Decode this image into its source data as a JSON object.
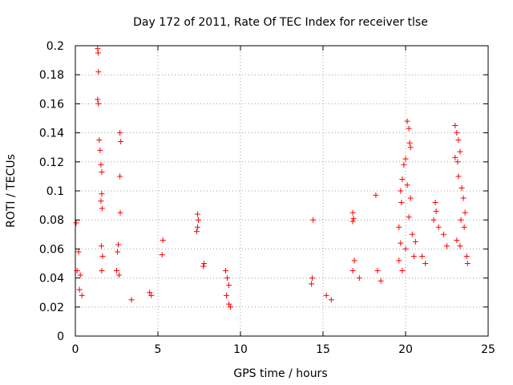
{
  "chart_data": {
    "type": "scatter",
    "title": "Day 172 of 2011, Rate Of TEC Index for receiver tlse",
    "xlabel": "GPS time / hours",
    "ylabel": "ROTI / TECUs",
    "xlim": [
      0,
      25
    ],
    "ylim": [
      0,
      0.2
    ],
    "xticks": [
      "0",
      "5",
      "10",
      "15",
      "20",
      "25"
    ],
    "yticks": [
      "0",
      "0.02",
      "0.04",
      "0.06",
      "0.08",
      "0.1",
      "0.12",
      "0.14",
      "0.16",
      "0.18",
      "0.2"
    ],
    "grid": true,
    "legend": "none",
    "marker": "+",
    "color": "#ff0000",
    "series": [
      {
        "values": [
          [
            0.05,
            0.078
          ],
          [
            0.1,
            0.045
          ],
          [
            0.2,
            0.058
          ],
          [
            0.3,
            0.042
          ],
          [
            0.25,
            0.032
          ],
          [
            0.4,
            0.028
          ],
          [
            1.35,
            0.198
          ],
          [
            1.38,
            0.195
          ],
          [
            1.4,
            0.182
          ],
          [
            1.35,
            0.163
          ],
          [
            1.4,
            0.16
          ],
          [
            1.45,
            0.135
          ],
          [
            1.5,
            0.128
          ],
          [
            1.55,
            0.118
          ],
          [
            1.6,
            0.113
          ],
          [
            1.6,
            0.098
          ],
          [
            1.55,
            0.093
          ],
          [
            1.62,
            0.088
          ],
          [
            1.58,
            0.062
          ],
          [
            1.65,
            0.055
          ],
          [
            1.6,
            0.045
          ],
          [
            2.7,
            0.14
          ],
          [
            2.75,
            0.134
          ],
          [
            2.7,
            0.11
          ],
          [
            2.72,
            0.085
          ],
          [
            2.6,
            0.063
          ],
          [
            2.55,
            0.058
          ],
          [
            2.5,
            0.045
          ],
          [
            2.65,
            0.042
          ],
          [
            5.3,
            0.066
          ],
          [
            5.25,
            0.056
          ],
          [
            7.4,
            0.084
          ],
          [
            7.45,
            0.08
          ],
          [
            7.4,
            0.075
          ],
          [
            7.35,
            0.072
          ],
          [
            7.8,
            0.05
          ],
          [
            7.75,
            0.048
          ],
          [
            4.5,
            0.03
          ],
          [
            3.4,
            0.025
          ],
          [
            4.6,
            0.028
          ],
          [
            9.1,
            0.045
          ],
          [
            9.2,
            0.04
          ],
          [
            9.3,
            0.035
          ],
          [
            9.15,
            0.028
          ],
          [
            9.3,
            0.022
          ],
          [
            9.4,
            0.02
          ],
          [
            14.4,
            0.08
          ],
          [
            14.35,
            0.04
          ],
          [
            14.3,
            0.036
          ],
          [
            15.2,
            0.028
          ],
          [
            15.5,
            0.025
          ],
          [
            16.8,
            0.085
          ],
          [
            16.85,
            0.081
          ],
          [
            16.8,
            0.079
          ],
          [
            16.9,
            0.052
          ],
          [
            16.8,
            0.045
          ],
          [
            17.2,
            0.04
          ],
          [
            18.2,
            0.097
          ],
          [
            18.3,
            0.045
          ],
          [
            18.5,
            0.038
          ],
          [
            19.6,
            0.075
          ],
          [
            19.7,
            0.064
          ],
          [
            19.6,
            0.052
          ],
          [
            19.8,
            0.045
          ],
          [
            20.1,
            0.148
          ],
          [
            20.2,
            0.143
          ],
          [
            20.25,
            0.133
          ],
          [
            20.3,
            0.13
          ],
          [
            20.0,
            0.122
          ],
          [
            19.9,
            0.118
          ],
          [
            19.8,
            0.108
          ],
          [
            20.1,
            0.104
          ],
          [
            20.3,
            0.095
          ],
          [
            19.7,
            0.1
          ],
          [
            19.75,
            0.092
          ],
          [
            20.2,
            0.082
          ],
          [
            20.4,
            0.07
          ],
          [
            20.6,
            0.065
          ],
          [
            20.0,
            0.06
          ],
          [
            20.5,
            0.055
          ],
          [
            21.0,
            0.055
          ],
          [
            21.2,
            0.05
          ],
          [
            21.8,
            0.092
          ],
          [
            21.85,
            0.086
          ],
          [
            21.7,
            0.08
          ],
          [
            22.0,
            0.075
          ],
          [
            22.3,
            0.07
          ],
          [
            22.5,
            0.062
          ],
          [
            23.0,
            0.145
          ],
          [
            23.1,
            0.14
          ],
          [
            23.2,
            0.135
          ],
          [
            23.3,
            0.127
          ],
          [
            23.0,
            0.123
          ],
          [
            23.15,
            0.12
          ],
          [
            23.2,
            0.11
          ],
          [
            23.4,
            0.102
          ],
          [
            23.5,
            0.095
          ],
          [
            23.6,
            0.085
          ],
          [
            23.35,
            0.08
          ],
          [
            23.55,
            0.075
          ],
          [
            23.1,
            0.066
          ],
          [
            23.3,
            0.062
          ],
          [
            23.7,
            0.055
          ],
          [
            23.75,
            0.05
          ]
        ]
      }
    ]
  }
}
